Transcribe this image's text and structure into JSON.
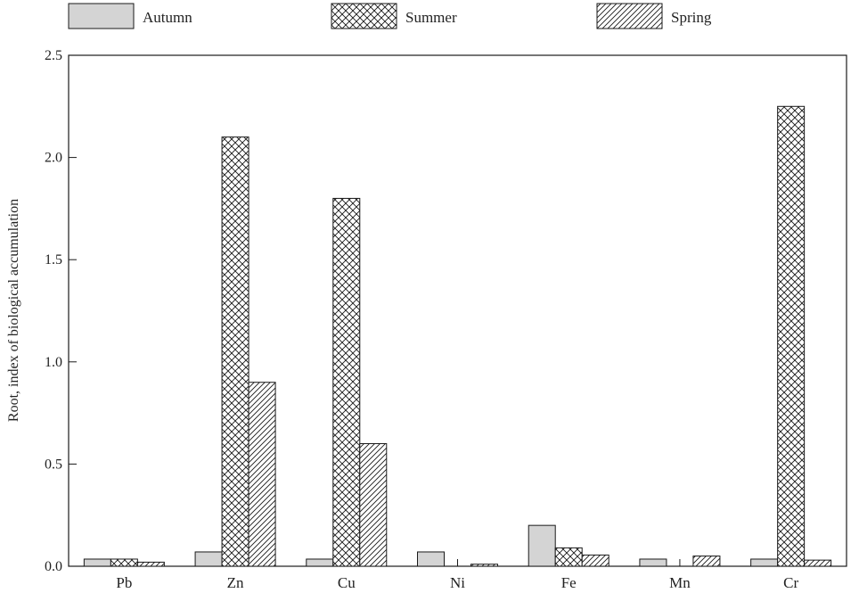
{
  "chart_data": {
    "type": "bar",
    "title": "",
    "xlabel": "",
    "ylabel": "Root, index of biological accumulation",
    "categories": [
      "Pb",
      "Zn",
      "Cu",
      "Ni",
      "Fe",
      "Mn",
      "Cr"
    ],
    "series": [
      {
        "name": "Autumn",
        "pattern": "solid-gray",
        "values": [
          0.035,
          0.07,
          0.035,
          0.07,
          0.2,
          0.035,
          0.035
        ]
      },
      {
        "name": "Summer",
        "pattern": "crosshatch",
        "values": [
          0.035,
          2.1,
          1.8,
          0,
          0.09,
          0,
          2.25
        ]
      },
      {
        "name": "Spring",
        "pattern": "diagonal-hatch",
        "values": [
          0.02,
          0.9,
          0.6,
          0.01,
          0.055,
          0.05,
          0.03
        ]
      }
    ],
    "ylim": [
      0,
      2.5
    ],
    "yticks": [
      "0.0",
      "0.5",
      "1.0",
      "1.5",
      "2.0",
      "2.5"
    ],
    "grid": false,
    "legend_position": "top"
  },
  "colors": {
    "autumn_fill": "#d4d4d4",
    "stroke": "#1a1a1a",
    "background": "#ffffff"
  }
}
